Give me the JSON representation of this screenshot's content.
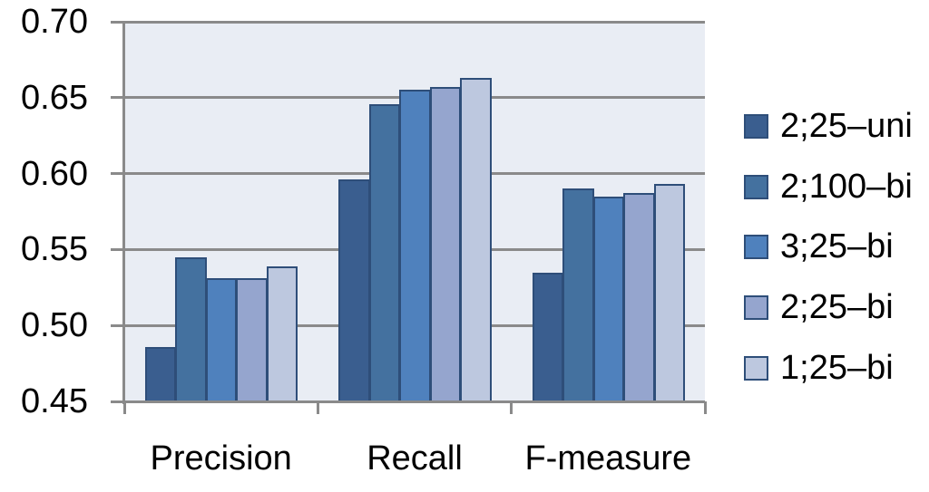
{
  "chart_data": {
    "type": "bar",
    "title": "",
    "xlabel": "",
    "ylabel": "",
    "categories": [
      "Precision",
      "Recall",
      "F-measure"
    ],
    "series": [
      {
        "name": "2;25–uni",
        "color": "#3a5e8f",
        "values": [
          0.486,
          0.596,
          0.535
        ]
      },
      {
        "name": "2;100–bi",
        "color": "#44719f",
        "values": [
          0.545,
          0.646,
          0.59
        ]
      },
      {
        "name": "3;25–bi",
        "color": "#4f81bd",
        "values": [
          0.531,
          0.655,
          0.585
        ]
      },
      {
        "name": "2;25–bi",
        "color": "#95a5ce",
        "values": [
          0.531,
          0.657,
          0.587
        ]
      },
      {
        "name": "1;25–bi",
        "color": "#bdc8df",
        "values": [
          0.539,
          0.663,
          0.593
        ]
      }
    ],
    "ylim": [
      0.45,
      0.7
    ],
    "yticks": [
      0.7,
      0.65,
      0.6,
      0.55,
      0.5,
      0.45
    ],
    "ytick_labels": [
      "0.70",
      "0.65",
      "0.60",
      "0.55",
      "0.50",
      "0.45"
    ],
    "grid": true,
    "legend_position": "right"
  },
  "style": {
    "plot_background": "#e9edf4",
    "grid_color": "#8a8a8a",
    "axis_color": "#8a8a8a",
    "bar_border_color": "#2e4e79",
    "text_color": "#000000",
    "canvas_background": "#ffffff"
  }
}
